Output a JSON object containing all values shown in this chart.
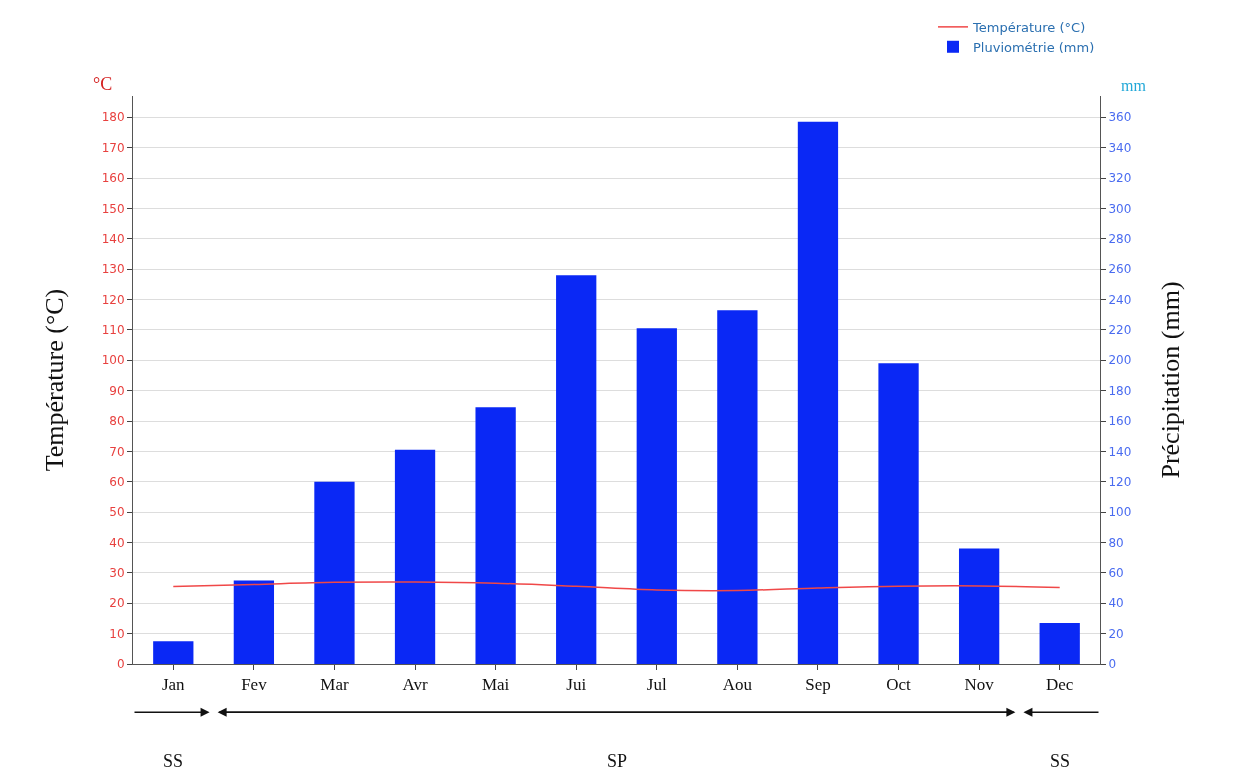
{
  "chart_data": {
    "type": "bar",
    "categories": [
      "Jan",
      "Fev",
      "Mar",
      "Avr",
      "Mai",
      "Jui",
      "Jul",
      "Aou",
      "Sep",
      "Oct",
      "Nov",
      "Dec"
    ],
    "series": [
      {
        "name": "Température (°C)",
        "type": "line",
        "color": "#f04848",
        "values": [
          25.5,
          26.2,
          26.9,
          27,
          26.6,
          25.6,
          24.4,
          24.2,
          25,
          25.6,
          25.7,
          25.2
        ]
      },
      {
        "name": "Pluviométrie (mm)",
        "color": "#0a28f5",
        "axis": "y2",
        "values": [
          15,
          55,
          120,
          141,
          169,
          256,
          221,
          233,
          357,
          198,
          76,
          27
        ]
      }
    ],
    "ylabel": "Température (°C)",
    "y2label": "Précipitation (mm)",
    "ylim": [
      0,
      187
    ],
    "yticks": [
      0,
      10,
      20,
      30,
      40,
      50,
      60,
      70,
      80,
      90,
      100,
      110,
      120,
      130,
      140,
      150,
      160,
      170,
      180
    ],
    "y2lim": [
      0,
      374
    ],
    "y2ticks": [
      0,
      20,
      40,
      60,
      80,
      100,
      120,
      140,
      160,
      180,
      200,
      220,
      240,
      260,
      280,
      300,
      320,
      340,
      360
    ],
    "annotations": [
      "°C",
      "mm",
      "SS",
      "SP",
      "SS"
    ],
    "grid": "y",
    "legend": "top right"
  }
}
